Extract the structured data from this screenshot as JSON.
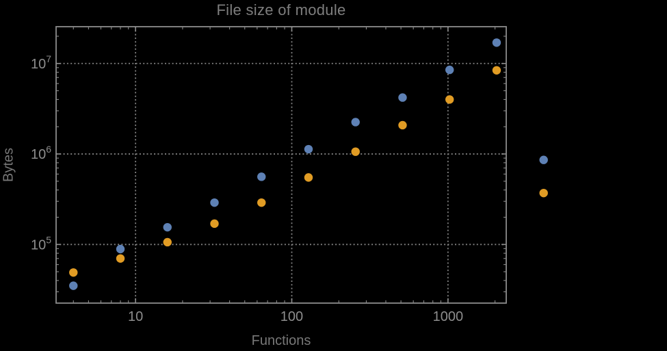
{
  "window": {
    "background": "#000000"
  },
  "colors": {
    "frame": "#8c8c8c",
    "grid": "#828282",
    "tick_label": "#8d8d8d",
    "title_text": "#7e7e7e",
    "axis_label_text": "#787878",
    "series_blue": "#5e81b5",
    "series_orange": "#e19c24"
  },
  "chart_data": {
    "type": "scatter",
    "title": "File size of module",
    "xlabel": "Functions",
    "ylabel": "Bytes",
    "x_scale": "log",
    "y_scale": "log",
    "xlim": [
      3.1,
      2360
    ],
    "ylim": [
      22500,
      25500000
    ],
    "grid": "dotted gridlines at major ticks only",
    "legend": "none",
    "clip_points": false,
    "x_tick_labels": [
      {
        "value": 10,
        "label": "10"
      },
      {
        "value": 100,
        "label": "100"
      },
      {
        "value": 1000,
        "label": "1000"
      }
    ],
    "y_tick_labels": [
      {
        "value": 100000,
        "base": "10",
        "exponent": "5"
      },
      {
        "value": 1000000,
        "base": "10",
        "exponent": "6"
      },
      {
        "value": 10000000,
        "base": "10",
        "exponent": "7"
      }
    ],
    "x": [
      4,
      8,
      16,
      32,
      64,
      128,
      256,
      512,
      1024,
      2048,
      4096
    ],
    "series": [
      {
        "name": "blue",
        "color": "#5e81b5",
        "values": [
          35000,
          89000,
          155000,
          290000,
          560000,
          1130000,
          2250000,
          4200000,
          8500000,
          17000000,
          860000
        ]
      },
      {
        "name": "orange",
        "color": "#e19c24",
        "values": [
          49000,
          70000,
          106000,
          170000,
          290000,
          550000,
          1060000,
          2080000,
          4000000,
          8400000,
          370000
        ]
      }
    ]
  }
}
